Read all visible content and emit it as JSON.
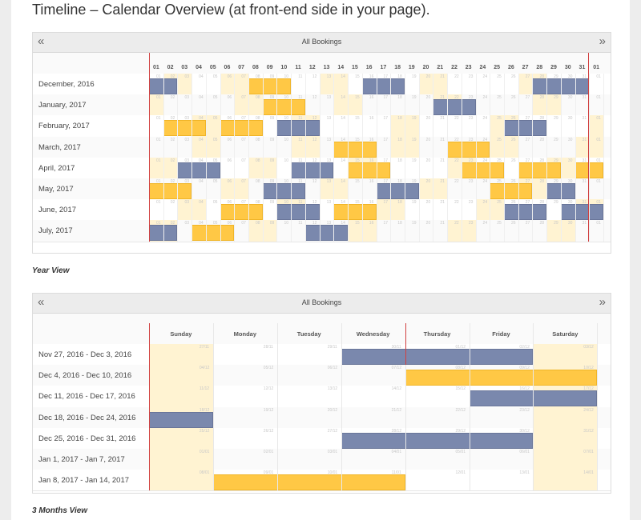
{
  "page": {
    "title": "Timeline – Calendar Overview (at front-end side in your page)."
  },
  "year_view": {
    "header_title": "All Bookings",
    "prev_icon": "«",
    "next_icon": "»",
    "caption": "Year View",
    "day_columns": [
      "01",
      "02",
      "03",
      "04",
      "05",
      "06",
      "07",
      "08",
      "09",
      "10",
      "11",
      "12",
      "13",
      "14",
      "15",
      "16",
      "17",
      "18",
      "19",
      "20",
      "21",
      "22",
      "23",
      "24",
      "25",
      "26",
      "27",
      "28",
      "29",
      "30",
      "31",
      "01"
    ],
    "rows": [
      {
        "label": "December, 2016",
        "highlight": [
          1,
          2,
          5,
          6,
          12,
          13,
          19,
          20,
          26,
          27
        ],
        "blue": [
          [
            0,
            1
          ],
          [
            15,
            17
          ],
          [
            27,
            30
          ]
        ],
        "yellow": [
          [
            7,
            9
          ]
        ]
      },
      {
        "label": "January, 2017",
        "highlight": [
          0,
          6,
          7,
          13,
          14,
          20,
          21,
          27,
          28
        ],
        "blue": [
          [
            20,
            22
          ]
        ],
        "yellow": [
          [
            8,
            10
          ]
        ]
      },
      {
        "label": "February, 2017",
        "highlight": [
          3,
          4,
          10,
          11,
          17,
          18,
          24,
          25,
          31
        ],
        "blue": [
          [
            9,
            11
          ],
          [
            25,
            27
          ]
        ],
        "yellow": [
          [
            1,
            3
          ],
          [
            5,
            7
          ]
        ]
      },
      {
        "label": "March, 2017",
        "highlight": [
          3,
          4,
          10,
          11,
          17,
          18,
          24,
          25,
          30,
          31
        ],
        "blue": [],
        "yellow": [
          [
            13,
            15
          ],
          [
            21,
            23
          ]
        ]
      },
      {
        "label": "April, 2017",
        "highlight": [
          0,
          1,
          7,
          8,
          14,
          15,
          21,
          22,
          28,
          29
        ],
        "blue": [
          [
            2,
            4
          ],
          [
            10,
            12
          ]
        ],
        "yellow": [
          [
            14,
            16
          ],
          [
            22,
            24
          ],
          [
            26,
            28
          ],
          [
            30,
            31
          ]
        ]
      },
      {
        "label": "May, 2017",
        "highlight": [
          5,
          6,
          12,
          13,
          19,
          20,
          26,
          27
        ],
        "blue": [
          [
            8,
            10
          ],
          [
            16,
            18
          ],
          [
            28,
            29
          ]
        ],
        "yellow": [
          [
            0,
            2
          ],
          [
            24,
            26
          ]
        ]
      },
      {
        "label": "June, 2017",
        "highlight": [
          2,
          3,
          9,
          10,
          16,
          17,
          23,
          24,
          30,
          31
        ],
        "blue": [
          [
            9,
            11
          ],
          [
            25,
            27
          ],
          [
            29,
            31
          ]
        ],
        "yellow": [
          [
            5,
            7
          ],
          [
            13,
            15
          ]
        ]
      },
      {
        "label": "July, 2017",
        "highlight": [
          0,
          1,
          7,
          8,
          14,
          15,
          21,
          22,
          28,
          29
        ],
        "blue": [
          [
            0,
            1
          ],
          [
            11,
            13
          ]
        ],
        "yellow": [
          [
            3,
            5
          ]
        ]
      }
    ]
  },
  "months_view": {
    "header_title": "All Bookings",
    "prev_icon": "«",
    "next_icon": "»",
    "caption": "3 Months View",
    "weekdays": [
      "Sunday",
      "Monday",
      "Tuesday",
      "Wednesday",
      "Thursday",
      "Friday",
      "Saturday"
    ],
    "rows": [
      {
        "label": "Nov 27, 2016 - Dec 3, 2016",
        "dates": [
          "27/11",
          "28/11",
          "29/11",
          "30/11",
          "01/12",
          "02/12",
          "03/12"
        ],
        "blue": [
          [
            3,
            5
          ]
        ],
        "yellow": []
      },
      {
        "label": "Dec 4, 2016 - Dec 10, 2016",
        "dates": [
          "04/12",
          "05/12",
          "06/12",
          "07/12",
          "08/12",
          "09/12",
          "10/12"
        ],
        "blue": [],
        "yellow": [
          [
            4,
            6
          ]
        ]
      },
      {
        "label": "Dec 11, 2016 - Dec 17, 2016",
        "dates": [
          "11/12",
          "12/12",
          "13/12",
          "14/12",
          "15/12",
          "16/12",
          "17/12"
        ],
        "blue": [
          [
            5,
            6
          ]
        ],
        "yellow": []
      },
      {
        "label": "Dec 18, 2016 - Dec 24, 2016",
        "dates": [
          "18/12",
          "19/12",
          "20/12",
          "21/12",
          "22/12",
          "23/12",
          "24/12"
        ],
        "blue": [
          [
            0,
            0
          ]
        ],
        "yellow": []
      },
      {
        "label": "Dec 25, 2016 - Dec 31, 2016",
        "dates": [
          "25/12",
          "26/12",
          "27/12",
          "28/12",
          "29/12",
          "30/12",
          "31/12"
        ],
        "blue": [
          [
            3,
            5
          ]
        ],
        "yellow": []
      },
      {
        "label": "Jan 1, 2017 - Jan 7, 2017",
        "dates": [
          "01/01",
          "02/01",
          "03/01",
          "04/01",
          "05/01",
          "06/01",
          "07/01"
        ],
        "blue": [],
        "yellow": []
      },
      {
        "label": "Jan 8, 2017 - Jan 14, 2017",
        "dates": [
          "08/01",
          "09/01",
          "10/01",
          "11/01",
          "12/01",
          "13/01",
          "14/01"
        ],
        "blue": [],
        "yellow": [
          [
            1,
            3
          ]
        ]
      }
    ]
  }
}
